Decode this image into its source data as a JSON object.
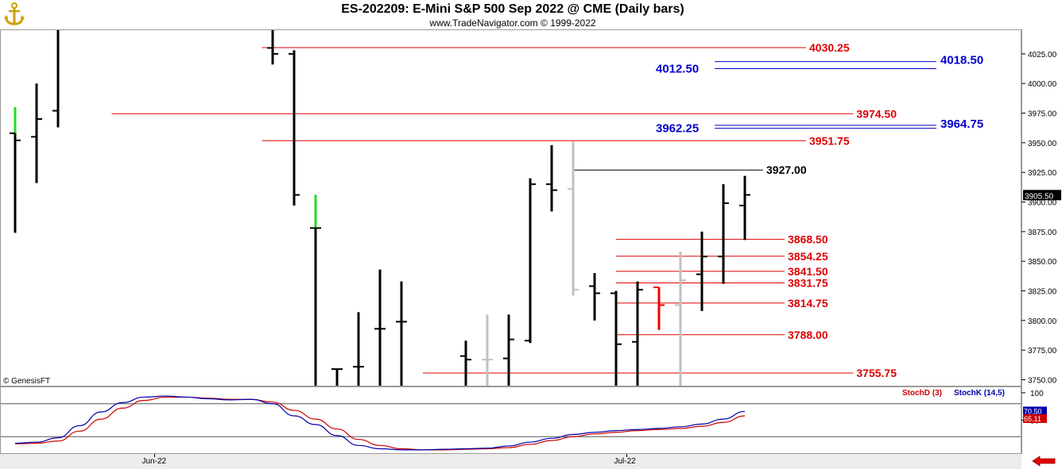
{
  "header": {
    "title": "ES-202209:  E-Mini S&P 500 Sep 2022 @ CME  (Daily bars)",
    "subtitle": "www.TradeNavigator.com © 1999-2022"
  },
  "copyright": "© GenesisFT",
  "last_price_badge": "3905.50",
  "colors": {
    "up_bar": "#000000",
    "gray_bar": "#c0c0c0",
    "green_bar": "#22dd22",
    "red_bar": "#ee0000",
    "red_level": "#dd0000",
    "blue_level": "#0000cc",
    "black_level": "#000000",
    "stoch_d": "#cc0000",
    "stoch_k": "#0000aa"
  },
  "chart_data": [
    {
      "type": "ohlc",
      "ylim": [
        3745,
        4045
      ],
      "y_ticks": [
        3750,
        3775,
        3800,
        3825,
        3850,
        3875,
        3900,
        3925,
        3950,
        3975,
        4000,
        4025
      ],
      "y_tick_labels": [
        "3750.00",
        "3775.00",
        "3800.00",
        "3825.00",
        "3850.00",
        "3875.00",
        "3900.00",
        "3925.00",
        "3950.00",
        "3975.00",
        "4000.00",
        "4025.00"
      ],
      "x_labels": [
        {
          "label": "Jun-22",
          "bar_index": 6.5
        },
        {
          "label": "Jul-22",
          "bar_index": 28.5
        }
      ],
      "bars": [
        {
          "o": 3958,
          "h": 3980,
          "l": 3874,
          "c": 3952,
          "color": "green_top"
        },
        {
          "o": 3955,
          "h": 4000,
          "l": 3916,
          "c": 3970,
          "color": "black"
        },
        {
          "o": 3977,
          "h": 4050,
          "l": 3963,
          "c": 4050,
          "color": "black"
        },
        {
          "o": null,
          "h": null,
          "l": null,
          "c": null,
          "color": "gap"
        },
        {
          "o": null,
          "h": null,
          "l": null,
          "c": null,
          "color": "gap"
        },
        {
          "o": null,
          "h": null,
          "l": null,
          "c": null,
          "color": "gap"
        },
        {
          "o": null,
          "h": null,
          "l": null,
          "c": null,
          "color": "gap"
        },
        {
          "o": null,
          "h": null,
          "l": null,
          "c": null,
          "color": "gap"
        },
        {
          "o": null,
          "h": null,
          "l": null,
          "c": null,
          "color": "gap"
        },
        {
          "o": null,
          "h": null,
          "l": null,
          "c": null,
          "color": "gap"
        },
        {
          "o": null,
          "h": null,
          "l": null,
          "c": null,
          "color": "gap"
        },
        {
          "o": null,
          "h": null,
          "l": null,
          "c": null,
          "color": "gap"
        },
        {
          "o": 4030,
          "h": 4050,
          "l": 4016,
          "c": 4025,
          "color": "black"
        },
        {
          "o": 4025,
          "h": 4028,
          "l": 3897,
          "c": 3906,
          "color": "black"
        },
        {
          "o": 3878,
          "h": 3906,
          "l": 3745,
          "c": 3878,
          "color": "green_top"
        },
        {
          "o": 3759,
          "h": 3759,
          "l": 3745,
          "c": 3759,
          "color": "black"
        },
        {
          "o": 3761,
          "h": 3807,
          "l": 3745,
          "c": 3761,
          "color": "black"
        },
        {
          "o": 3793,
          "h": 3843,
          "l": 3745,
          "c": 3793,
          "color": "black"
        },
        {
          "o": 3799,
          "h": 3833,
          "l": 3745,
          "c": 3799,
          "color": "black"
        },
        {
          "o": null,
          "h": null,
          "l": null,
          "c": null,
          "color": "gap"
        },
        {
          "o": null,
          "h": null,
          "l": null,
          "c": null,
          "color": "gap"
        },
        {
          "o": 3770,
          "h": 3783,
          "l": 3745,
          "c": 3767,
          "color": "black"
        },
        {
          "o": 3767,
          "h": 3805,
          "l": 3745,
          "c": 3767,
          "color": "gray"
        },
        {
          "o": 3768,
          "h": 3805,
          "l": 3745,
          "c": 3784,
          "color": "black"
        },
        {
          "o": 3783,
          "h": 3920,
          "l": 3781,
          "c": 3915,
          "color": "black"
        },
        {
          "o": 3915,
          "h": 3948,
          "l": 3892,
          "c": 3910,
          "color": "black"
        },
        {
          "o": 3911,
          "h": 3951,
          "l": 3821,
          "c": 3826,
          "color": "gray"
        },
        {
          "o": 3829,
          "h": 3840,
          "l": 3800,
          "c": 3823,
          "color": "black"
        },
        {
          "o": 3823,
          "h": 3825,
          "l": 3745,
          "c": 3780,
          "color": "black"
        },
        {
          "o": 3782,
          "h": 3833,
          "l": 3745,
          "c": 3826,
          "color": "black"
        },
        {
          "o": 3828,
          "h": 3828,
          "l": 3792,
          "c": 3813,
          "color": "red"
        },
        {
          "o": 3813,
          "h": 3858,
          "l": 3745,
          "c": 3834,
          "color": "gray"
        },
        {
          "o": 3839,
          "h": 3875,
          "l": 3808,
          "c": 3854,
          "color": "black"
        },
        {
          "o": 3854,
          "h": 3915,
          "l": 3831,
          "c": 3899,
          "color": "black"
        },
        {
          "o": 3897,
          "h": 3922,
          "l": 3868,
          "c": 3906,
          "color": "black"
        }
      ],
      "levels": [
        {
          "value": 4030.25,
          "label": "4030.25",
          "color": "red",
          "x_start": 11.5,
          "label_x_bar": 37
        },
        {
          "value": 3974.5,
          "label": "3974.50",
          "color": "red",
          "x_start": 4.5,
          "label_x_bar": 39.2
        },
        {
          "value": 3951.75,
          "label": "3951.75",
          "color": "red",
          "x_start": 11.5,
          "label_x_bar": 37
        },
        {
          "value": 3927.0,
          "label": "3927.00",
          "color": "black",
          "x_start": 26,
          "label_x_bar": 35
        },
        {
          "value": 3868.5,
          "label": "3868.50",
          "color": "red",
          "x_start": 28,
          "label_x_bar": 36
        },
        {
          "value": 3854.25,
          "label": "3854.25",
          "color": "red",
          "x_start": 28,
          "label_x_bar": 36
        },
        {
          "value": 3841.5,
          "label": "3841.50",
          "color": "red",
          "x_start": 28,
          "label_x_bar": 36
        },
        {
          "value": 3831.75,
          "label": "3831.75",
          "color": "red",
          "x_start": 28,
          "label_x_bar": 36
        },
        {
          "value": 3814.75,
          "label": "3814.75",
          "color": "red",
          "x_start": 28,
          "label_x_bar": 36
        },
        {
          "value": 3788.0,
          "label": "3788.00",
          "color": "red",
          "x_start": 28,
          "label_x_bar": 36
        },
        {
          "value": 3755.75,
          "label": "3755.75",
          "color": "red",
          "x_start": 19,
          "label_x_bar": 39.2
        }
      ],
      "paired_levels": [
        {
          "low": 4012.5,
          "high": 4018.5,
          "label_low": "4012.50",
          "label_high": "4018.50"
        },
        {
          "low": 3962.25,
          "high": 3964.75,
          "label_low": "3962.25",
          "label_high": "3964.75"
        }
      ]
    },
    {
      "type": "line",
      "ylim": [
        -10,
        110
      ],
      "y_ticks": [
        50,
        100
      ],
      "y_tick_labels": [
        "50",
        "100"
      ],
      "ref_lines": [
        80,
        20
      ],
      "legend": [
        "StochD (3)",
        "StochK (14,5)"
      ],
      "value_badges": [
        "70.50",
        "65.11"
      ],
      "series": [
        {
          "name": "StochK (14,5)",
          "values": [
            8,
            10,
            18,
            40,
            65,
            82,
            92,
            94,
            92,
            89,
            87,
            88,
            80,
            58,
            42,
            22,
            4,
            -2,
            -4,
            -4,
            -3,
            -2,
            -1,
            3,
            10,
            17,
            24,
            28,
            31,
            33,
            35,
            38,
            43,
            52,
            66
          ]
        },
        {
          "name": "StochD (3)",
          "values": [
            7,
            8,
            12,
            30,
            52,
            72,
            86,
            92,
            92,
            90,
            88,
            88,
            83,
            68,
            52,
            34,
            15,
            4,
            -2,
            -4,
            -4,
            -3,
            -2,
            0,
            6,
            13,
            20,
            25,
            28,
            31,
            33,
            35,
            39,
            46,
            58
          ]
        }
      ]
    }
  ]
}
